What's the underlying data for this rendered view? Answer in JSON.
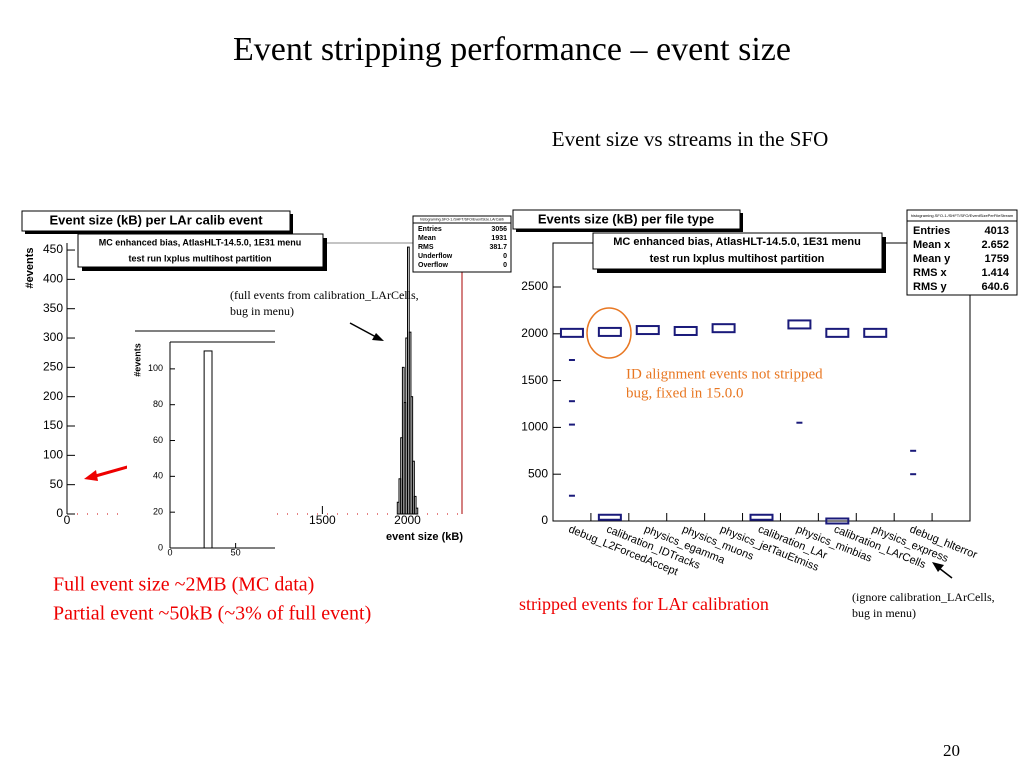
{
  "slide": {
    "title": "Event stripping performance – event size",
    "subtitle": "Event size vs streams in the SFO",
    "page_number": "20",
    "notes_left": [
      "Full event size ~2MB (MC data)",
      "Partial event ~50kB (~3% of full event)"
    ],
    "note_right": "stripped events for LAr calibration",
    "note_ignore": [
      "(ignore calibration_LArCells,",
      "bug in menu)"
    ]
  },
  "left_plot": {
    "title": "Event size (kB) per LAr calib event",
    "stats_header": "histograming.SFO-1./SHFT/SFO/EventSize.LArCalib",
    "stats": [
      [
        "Entries",
        "3056"
      ],
      [
        "Mean",
        "1931"
      ],
      [
        "RMS",
        "381.7"
      ],
      [
        "Underflow",
        "0"
      ],
      [
        "Overflow",
        "0"
      ]
    ],
    "info": [
      "MC enhanced bias, AtlasHLT-14.5.0, 1E31 menu",
      "test run lxplus multihost partition"
    ],
    "ylabel": "#events",
    "xlabel": "event size (kB)",
    "annotation": [
      "(full events from calibration_LArCells,",
      "bug in menu)"
    ],
    "xlim": [
      0,
      2320
    ],
    "xticks": [
      0,
      1500,
      2000
    ],
    "ylim": [
      0,
      462
    ],
    "yticks": [
      0,
      50,
      100,
      150,
      200,
      250,
      300,
      350,
      400,
      450
    ],
    "bins": [
      1940,
      1950,
      1960,
      1970,
      1980,
      1990,
      2000,
      2010,
      2020,
      2030,
      2040,
      2050,
      2060
    ],
    "counts": [
      20,
      60,
      130,
      250,
      190,
      300,
      455,
      310,
      200,
      90,
      30,
      10
    ],
    "inset": {
      "ylabel": "#events",
      "xlim": [
        0,
        80
      ],
      "xticks": [
        0,
        50
      ],
      "ylim": [
        0,
        115
      ],
      "yticks": [
        0,
        20,
        40,
        60,
        80,
        100
      ],
      "bins": [
        26,
        32
      ],
      "counts": [
        110
      ]
    }
  },
  "right_plot": {
    "title": "Events size (kB) per file type",
    "stats_header": "histograming.SFO-1./SHFT/SFO/EventSizePerFileStream",
    "stats": [
      [
        "Entries",
        "4013"
      ],
      [
        "Mean x",
        "2.652"
      ],
      [
        "Mean y",
        "1759"
      ],
      [
        "RMS x",
        "1.414"
      ],
      [
        "RMS y",
        "640.6"
      ]
    ],
    "info": [
      "MC enhanced bias, AtlasHLT-14.5.0, 1E31 menu",
      "test run lxplus multihost partition"
    ],
    "annotation": [
      "ID alignment events not stripped",
      "bug, fixed in 15.0.0"
    ],
    "categories": [
      "debug_L2ForcedAccept",
      "calibration_IDTracks",
      "physics_egamma",
      "physics_muons",
      "physics_jetTauEtmiss",
      "calibration_LAr",
      "physics_minbias",
      "calibration_LArCells",
      "physics_express",
      "debug_hlterror",
      null
    ],
    "ylim": [
      0,
      2970
    ],
    "yticks": [
      0,
      500,
      1000,
      1500,
      2000,
      2500
    ],
    "full_events": [
      2010,
      2020,
      2040,
      2030,
      2060,
      null,
      2100,
      2010,
      2010,
      null,
      null
    ],
    "stripped_events": [
      null,
      40,
      null,
      null,
      null,
      40,
      null,
      0,
      null,
      null,
      null
    ],
    "outliers": [
      [
        1720,
        1280,
        1030,
        270
      ],
      [],
      [],
      [],
      [],
      [],
      [
        1050
      ],
      [],
      [],
      [
        750,
        500
      ],
      []
    ],
    "color": "#1a1a7a"
  }
}
